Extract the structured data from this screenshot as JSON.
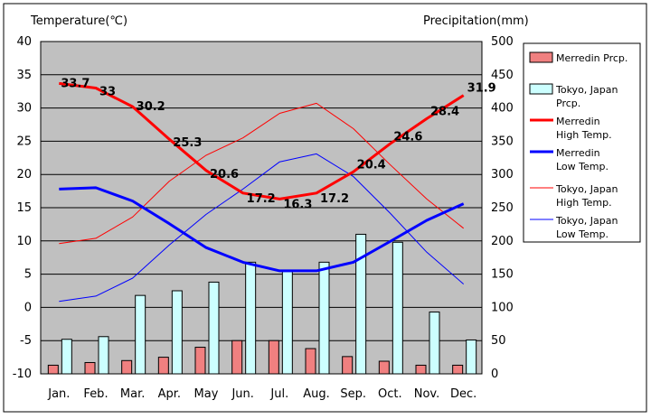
{
  "chart_data": {
    "type": "bar",
    "categories": [
      "Jan.",
      "Feb.",
      "Mar.",
      "Apr.",
      "May",
      "Jun.",
      "Jul.",
      "Aug.",
      "Sep.",
      "Oct.",
      "Nov.",
      "Dec."
    ],
    "ylabel_left": "Temperature(℃)",
    "ylabel_right": "Precipitation(mm)",
    "ylim_left": [
      -10,
      40
    ],
    "ylim_right": [
      0,
      500
    ],
    "yticks_left": [
      -10,
      -5,
      0,
      5,
      10,
      15,
      20,
      25,
      30,
      35,
      40
    ],
    "yticks_right": [
      0,
      50,
      100,
      150,
      200,
      250,
      300,
      350,
      400,
      450,
      500
    ],
    "grid": true,
    "legend_position": "right",
    "series": [
      {
        "name": "Merredin Prcp.",
        "kind": "bar",
        "axis": "right",
        "color": "#f08080",
        "values": [
          13,
          17,
          20,
          25,
          40,
          50,
          50,
          38,
          26,
          19,
          13,
          13
        ]
      },
      {
        "name": "Tokyo, Japan Prcp.",
        "kind": "bar",
        "axis": "right",
        "color": "#ccffff",
        "values": [
          52,
          56,
          118,
          125,
          138,
          168,
          154,
          168,
          210,
          198,
          93,
          51
        ]
      },
      {
        "name": "Merredin High Temp.",
        "kind": "line",
        "axis": "left",
        "color": "#ff0000",
        "width": 3,
        "show_labels": true,
        "values": [
          33.7,
          33,
          30.2,
          25.3,
          20.6,
          17.2,
          16.3,
          17.2,
          20.4,
          24.6,
          28.4,
          31.9
        ]
      },
      {
        "name": "Merredin Low Temp.",
        "kind": "line",
        "axis": "left",
        "color": "#0000ff",
        "width": 3,
        "show_labels": false,
        "values": [
          17.8,
          18,
          16,
          12.6,
          9,
          6.8,
          5.5,
          5.5,
          6.8,
          9.9,
          13.1,
          15.6
        ]
      },
      {
        "name": "Tokyo, Japan High Temp.",
        "kind": "line",
        "axis": "left",
        "color": "#ff0000",
        "width": 1,
        "show_labels": false,
        "values": [
          9.6,
          10.4,
          13.6,
          19,
          22.9,
          25.5,
          29.2,
          30.7,
          26.9,
          21.5,
          16.3,
          11.9
        ]
      },
      {
        "name": "Tokyo, Japan Low Temp.",
        "kind": "line",
        "axis": "left",
        "color": "#0000ff",
        "width": 1,
        "show_labels": false,
        "values": [
          0.9,
          1.7,
          4.4,
          9.4,
          14,
          17.8,
          21.9,
          23.1,
          19.7,
          14.2,
          8.3,
          3.5
        ]
      }
    ],
    "legend": [
      {
        "label": "Merredin Prcp.",
        "marker": "bar",
        "color": "#f08080"
      },
      {
        "label": "Tokyo, Japan\nPrcp.",
        "marker": "bar",
        "color": "#ccffff"
      },
      {
        "label": "Merredin\n High Temp.",
        "marker": "line",
        "color": "#ff0000",
        "width": 3
      },
      {
        "label": "Merredin\n Low Temp.",
        "marker": "line",
        "color": "#0000ff",
        "width": 3
      },
      {
        "label": "Tokyo, Japan\nHigh Temp.",
        "marker": "line",
        "color": "#ff0000",
        "width": 1
      },
      {
        "label": "Tokyo, Japan\nLow Temp.",
        "marker": "line",
        "color": "#0000ff",
        "width": 1
      }
    ]
  },
  "colors": {
    "plot_background": "#c0c0c0",
    "bar_outline": "#000000"
  }
}
